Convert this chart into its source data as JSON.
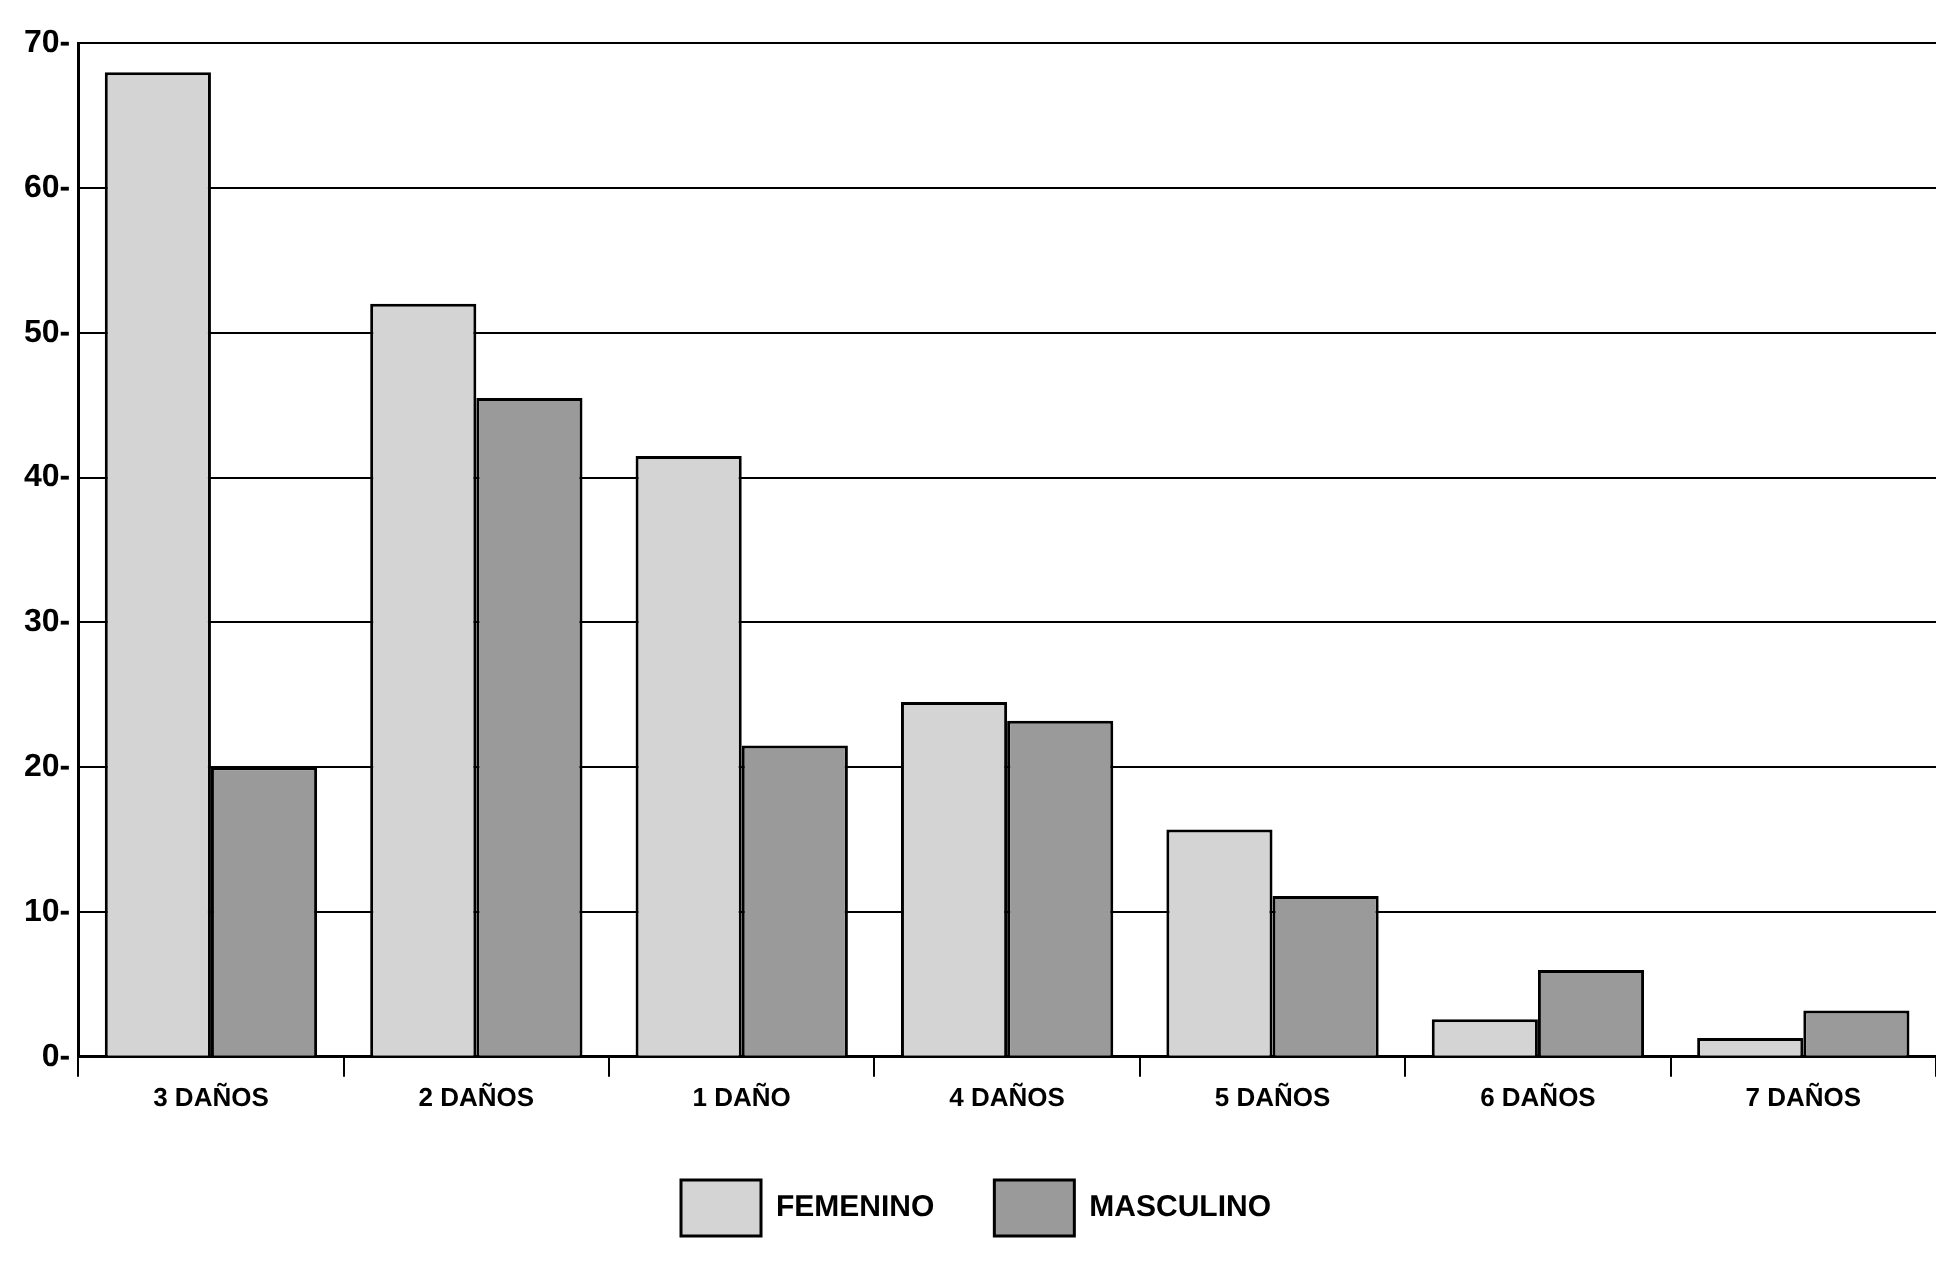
{
  "chart_data": {
    "type": "bar",
    "categories": [
      "3 DAÑOS",
      "2 DAÑOS",
      "1 DAÑO",
      "4 DAÑOS",
      "5 DAÑOS",
      "6 DAÑOS",
      "7 DAÑOS"
    ],
    "series": [
      {
        "name": "FEMENINO",
        "color": "#d4d4d4",
        "values": [
          68,
          52,
          41.5,
          24.5,
          15.7,
          2.6,
          1.3
        ]
      },
      {
        "name": "MASCULINO",
        "color": "#9a9a9a",
        "values": [
          20,
          45.5,
          21.5,
          23.2,
          11.1,
          6,
          3.2
        ]
      }
    ],
    "ylim": [
      0,
      70
    ],
    "yticks": [
      {
        "value": 0,
        "label": "0-"
      },
      {
        "value": 10,
        "label": "10-"
      },
      {
        "value": 20,
        "label": "20-"
      },
      {
        "value": 30,
        "label": "30-"
      },
      {
        "value": 40,
        "label": "40-"
      },
      {
        "value": 50,
        "label": "50-"
      },
      {
        "value": 60,
        "label": "60-"
      },
      {
        "value": 70,
        "label": "70-"
      }
    ],
    "grid": "y",
    "legend": "bottom"
  }
}
